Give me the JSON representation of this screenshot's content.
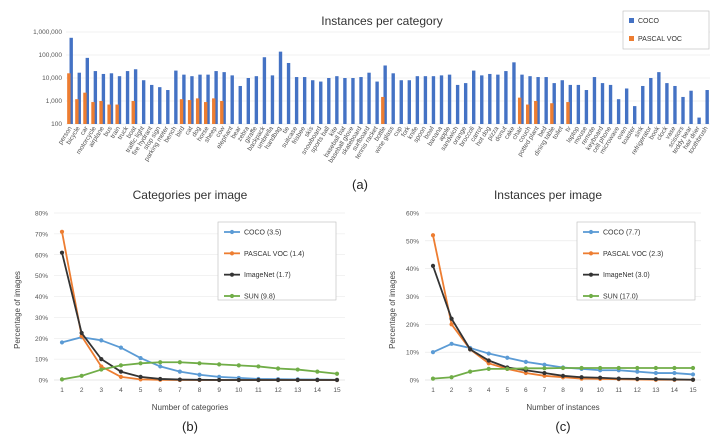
{
  "chart_data": [
    {
      "type": "bar",
      "title": "Instances per category",
      "scale": "log",
      "ylim": [
        100,
        1000000
      ],
      "yticks": [
        100,
        1000,
        10000,
        100000,
        1000000
      ],
      "ytick_labels": [
        "100",
        "1,000",
        "10,000",
        "100,000",
        "1,000,000"
      ],
      "categories": [
        "person",
        "bicycle",
        "car",
        "motorcycle",
        "airplane",
        "bus",
        "train",
        "truck",
        "boat",
        "traffic light",
        "fire hydrant",
        "stop sign",
        "parking meter",
        "bench",
        "bird",
        "cat",
        "dog",
        "horse",
        "sheep",
        "cow",
        "elephant",
        "bear",
        "zebra",
        "giraffe",
        "backpack",
        "umbrella",
        "handbag",
        "tie",
        "suitcase",
        "frisbee",
        "skis",
        "snowboard",
        "sports ball",
        "kite",
        "baseball bat",
        "baseball glove",
        "skateboard",
        "surfboard",
        "tennis racket",
        "bottle",
        "wine glass",
        "cup",
        "fork",
        "knife",
        "spoon",
        "bowl",
        "banana",
        "apple",
        "sandwich",
        "orange",
        "broccoli",
        "carrot",
        "hot dog",
        "pizza",
        "donut",
        "cake",
        "chair",
        "couch",
        "potted plant",
        "bed",
        "dining table",
        "toilet",
        "tv",
        "laptop",
        "mouse",
        "remote",
        "keyboard",
        "cell phone",
        "microwave",
        "oven",
        "toaster",
        "sink",
        "refrigerator",
        "book",
        "clock",
        "vase",
        "scissors",
        "teddy bear",
        "hair drier",
        "toothbrush"
      ],
      "categories_shown": [
        "person",
        "bicycle",
        "car",
        "motorcycle",
        "airplane",
        "bus",
        "train",
        "truck",
        "boat",
        "traffic light",
        "fire hydrant",
        "stop sign",
        "parking meter",
        "bench",
        "bird",
        "cat",
        "dog",
        "horse",
        "sheep",
        "cow",
        "elephant",
        "bear",
        "zebra",
        "giraffe",
        "backpack",
        "umbrella",
        "handbag",
        "tie",
        "suitcase",
        "frisbee",
        "skis",
        "snowboard",
        "sports ball",
        "kite",
        "baseball bat",
        "baseball glove",
        "skateboard",
        "surfboard",
        "tennis racket",
        "bottle",
        "wine glass",
        "cup",
        "fork",
        "knife",
        "spoon",
        "bowl",
        "banana",
        "apple",
        "sandwich",
        "orange",
        "broccoli",
        "carrot",
        "hot dog",
        "pizza",
        "donut",
        "cake",
        "chair",
        "couch",
        "potted plant",
        "bed",
        "dining table",
        "toilet",
        "tv",
        "laptop",
        "mouse",
        "remote",
        "keyboard",
        "cell phone",
        "microwave",
        "oven",
        "toaster",
        "sink",
        "refrigerator",
        "book",
        "clock",
        "vase",
        "scissors",
        "teddy bear",
        "hair drier",
        "toothbrush"
      ],
      "series": [
        {
          "name": "COCO",
          "color": "#4472c4",
          "values": [
            560000,
            17000,
            75000,
            20000,
            15000,
            16000,
            12000,
            20000,
            24000,
            8000,
            5000,
            4000,
            3000,
            21000,
            14000,
            12000,
            14000,
            14000,
            20000,
            18000,
            13000,
            4500,
            10000,
            12000,
            80000,
            13000,
            140000,
            45000,
            11000,
            11000,
            8000,
            7000,
            10000,
            12000,
            10000,
            10000,
            11000,
            17000,
            7000,
            35000,
            16000,
            8000,
            8000,
            12000,
            12000,
            12000,
            13000,
            14000,
            5000,
            6000,
            21000,
            13000,
            15000,
            14000,
            20000,
            48000,
            14000,
            12000,
            11000,
            11000,
            6000,
            8000,
            5000,
            5000,
            3000,
            11000,
            6000,
            5000,
            1200,
            3500,
            600,
            4500,
            10000,
            18000,
            6000,
            4500,
            1500,
            2800,
            190,
            3000
          ]
        },
        {
          "name": "PASCAL VOC",
          "color": "#ed7d31",
          "values": [
            16000,
            1200,
            2300,
            900,
            1000,
            700,
            700,
            null,
            1000,
            null,
            null,
            null,
            null,
            null,
            1200,
            1100,
            1300,
            900,
            1300,
            1000,
            null,
            null,
            null,
            null,
            null,
            null,
            null,
            null,
            null,
            null,
            null,
            null,
            null,
            null,
            null,
            null,
            null,
            null,
            null,
            1500,
            null,
            null,
            null,
            null,
            null,
            null,
            null,
            null,
            null,
            null,
            null,
            null,
            null,
            null,
            null,
            null,
            1400,
            700,
            1000,
            null,
            800,
            null,
            900,
            null,
            null,
            null,
            null,
            null,
            null,
            null,
            null,
            null,
            null,
            null,
            null,
            null,
            null,
            null,
            null,
            null
          ]
        }
      ],
      "legend": "top-right",
      "panel_label": "(a)"
    },
    {
      "type": "line",
      "title": "Categories per image",
      "xlabel": "Number of categories",
      "ylabel": "Percentage of images",
      "x": [
        1,
        2,
        3,
        4,
        5,
        6,
        7,
        8,
        9,
        10,
        11,
        12,
        13,
        14,
        15
      ],
      "ylim": [
        0,
        80
      ],
      "yticks": [
        "0%",
        "10%",
        "20%",
        "30%",
        "40%",
        "50%",
        "60%",
        "70%",
        "80%"
      ],
      "series": [
        {
          "name": "COCO (3.5)",
          "color": "#5b9bd5",
          "values": [
            18,
            20.5,
            19,
            15.5,
            10.5,
            6.5,
            4,
            2.5,
            1.5,
            1,
            0.5,
            0.4,
            0.3,
            0.2,
            0.1
          ]
        },
        {
          "name": "PASCAL VOC (1.4)",
          "color": "#ed7d31",
          "values": [
            71,
            21,
            6.5,
            1.5,
            0.3,
            0.1,
            0,
            0,
            0,
            0,
            0,
            0,
            0,
            0,
            0
          ]
        },
        {
          "name": "ImageNet (1.7)",
          "color": "#333333",
          "values": [
            61,
            22.5,
            10,
            4,
            1.5,
            0.5,
            0.2,
            0.1,
            0,
            0,
            0,
            0,
            0,
            0,
            0
          ]
        },
        {
          "name": "SUN (9.8)",
          "color": "#70ad47",
          "values": [
            0.3,
            2,
            5,
            7,
            8,
            8.5,
            8.5,
            8,
            7.5,
            7,
            6.5,
            5.5,
            5,
            4,
            3
          ]
        }
      ],
      "legend": "top-right",
      "panel_label": "(b)"
    },
    {
      "type": "line",
      "title": "Instances per image",
      "xlabel": "Number of instances",
      "ylabel": "Percentage of images",
      "x": [
        1,
        2,
        3,
        4,
        5,
        6,
        7,
        8,
        9,
        10,
        11,
        12,
        13,
        14,
        15
      ],
      "ylim": [
        0,
        60
      ],
      "yticks": [
        "0%",
        "10%",
        "20%",
        "30%",
        "40%",
        "50%",
        "60%"
      ],
      "series": [
        {
          "name": "COCO (7.7)",
          "color": "#5b9bd5",
          "values": [
            10,
            13,
            11.5,
            9.5,
            8,
            6.5,
            5.5,
            4.5,
            4,
            3.5,
            3.5,
            3,
            2.5,
            2.5,
            2
          ]
        },
        {
          "name": "PASCAL VOC (2.3)",
          "color": "#ed7d31",
          "values": [
            52,
            20,
            11,
            6,
            4,
            2.5,
            1.5,
            1,
            0.5,
            0.4,
            0.3,
            0.2,
            0.1,
            0.1,
            0.1
          ]
        },
        {
          "name": "ImageNet (3.0)",
          "color": "#333333",
          "values": [
            41,
            22,
            11,
            7,
            4.5,
            3.5,
            2.5,
            1.5,
            1,
            0.8,
            0.5,
            0.4,
            0.3,
            0.2,
            0.1
          ]
        },
        {
          "name": "SUN (17.0)",
          "color": "#70ad47",
          "values": [
            0.5,
            1,
            3,
            4,
            4,
            4.2,
            4.2,
            4.3,
            4.3,
            4.3,
            4.3,
            4.3,
            4.3,
            4.3,
            4.3
          ]
        }
      ],
      "legend": "top-right",
      "panel_label": "(c)"
    }
  ]
}
